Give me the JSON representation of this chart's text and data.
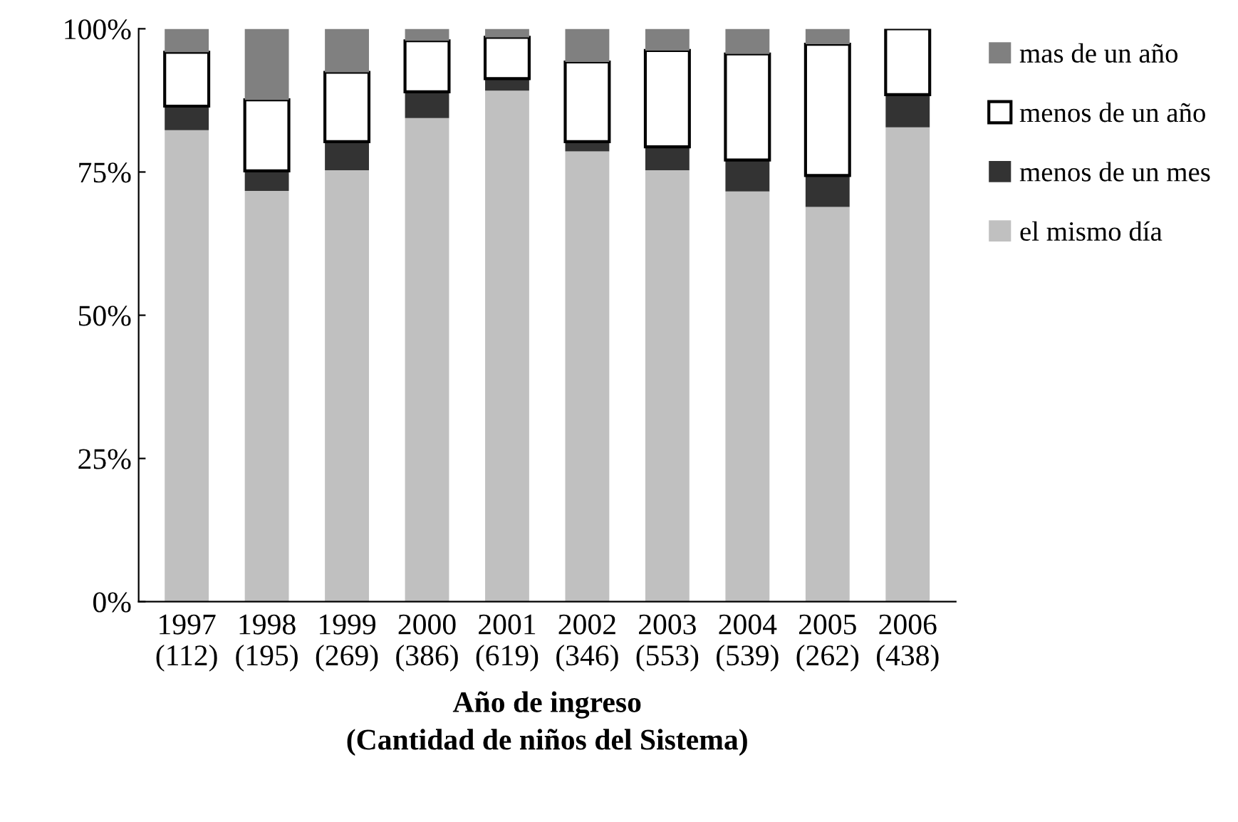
{
  "chart_data": {
    "type": "bar",
    "stacked": true,
    "xlabel": "Año de ingreso\n(Cantidad de niños del Sistema)",
    "categories": [
      "1997\n(112)",
      "1998\n(195)",
      "1999\n(269)",
      "2000\n(386)",
      "2001\n(619)",
      "2002\n(346)",
      "2003\n(553)",
      "2004\n(539)",
      "2005\n(262)",
      "2006\n(438)"
    ],
    "series": [
      {
        "name": "el mismo día",
        "color": "#c0c0c0",
        "values": [
          82.3,
          71.7,
          75.3,
          84.4,
          89.2,
          78.6,
          75.3,
          71.6,
          68.9,
          82.8
        ]
      },
      {
        "name": "menos de un mes",
        "color": "#333333",
        "values": [
          4.2,
          3.5,
          5.0,
          4.6,
          2.1,
          1.7,
          4.1,
          5.5,
          5.5,
          5.7
        ]
      },
      {
        "name": "menos de un año",
        "color": "#ffffff",
        "values": [
          9.4,
          12.4,
          12.1,
          8.9,
          7.2,
          13.9,
          16.8,
          18.5,
          22.9,
          11.5
        ]
      },
      {
        "name": "mas de un año",
        "color": "#808080",
        "values": [
          4.1,
          12.4,
          7.6,
          2.1,
          1.5,
          5.8,
          3.8,
          4.4,
          2.7,
          0
        ]
      }
    ],
    "ylim": [
      0,
      100
    ],
    "yticks": [
      {
        "value": 0,
        "label": "0%"
      },
      {
        "value": 25,
        "label": "25%"
      },
      {
        "value": 50,
        "label": "50%"
      },
      {
        "value": 75,
        "label": "75%"
      },
      {
        "value": 100,
        "label": "100%"
      }
    ],
    "grid": false,
    "legend": "right"
  }
}
